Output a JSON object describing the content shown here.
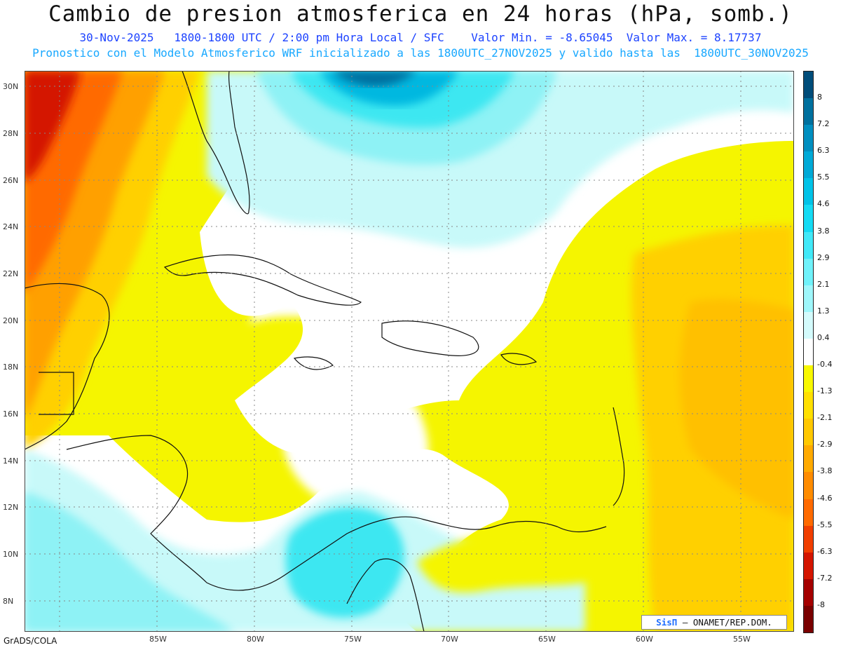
{
  "header": {
    "title": "Cambio de presion atmosferica en 24 horas (hPa, somb.)",
    "subtitle": "30-Nov-2025   1800-1800 UTC / 2:00 pm Hora Local / SFC    Valor Min. = -8.65045  Valor Max. = 8.17737",
    "info": "Pronostico con el Modelo Atmosferico WRF inicializado a las 1800UTC_27NOV2025 y valido hasta las  1800UTC_30NOV2025"
  },
  "map": {
    "lat_labels": [
      "30N",
      "28N",
      "26N",
      "24N",
      "22N",
      "20N",
      "18N",
      "16N",
      "14N",
      "12N",
      "10N",
      "8N"
    ],
    "lon_labels": [
      "85W",
      "80W",
      "75W",
      "70W",
      "65W",
      "60W",
      "55W"
    ],
    "field_colors": {
      "deep_red": "#a50000",
      "red": "#e42a05",
      "orange_red": "#ff6a00",
      "orange": "#ffa000",
      "light_orange": "#ffd000",
      "yellow": "#f5f500",
      "white": "#ffffff",
      "pale_cyan": "#c8f9f9",
      "light_cyan": "#8ef2f5",
      "cyan": "#3ee7f1",
      "blue_cyan": "#00b8e0",
      "dark_cyan": "#006e9e"
    }
  },
  "colorbar": {
    "labels": [
      "8",
      "7.2",
      "6.3",
      "5.5",
      "4.6",
      "3.8",
      "2.9",
      "2.1",
      "1.3",
      "0.4",
      "-0.4",
      "-1.3",
      "-2.1",
      "-2.9",
      "-3.8",
      "-4.6",
      "-5.5",
      "-6.3",
      "-7.2",
      "-8"
    ],
    "colors": [
      "#004d7a",
      "#00719f",
      "#008fc0",
      "#00aad7",
      "#00c3e8",
      "#14dbf4",
      "#41e9f8",
      "#6ff2fa",
      "#9ff7fb",
      "#d4fbfc",
      "#ffffff",
      "#f8f800",
      "#ffe000",
      "#ffc800",
      "#ffaa00",
      "#ff8c00",
      "#ff6a00",
      "#f13e00",
      "#d41500",
      "#a50000",
      "#7a0000"
    ]
  },
  "credit": {
    "brand": "SisΠ",
    "text": " ONAMET/REP.DOM."
  },
  "footer": "GrADS/COLA"
}
